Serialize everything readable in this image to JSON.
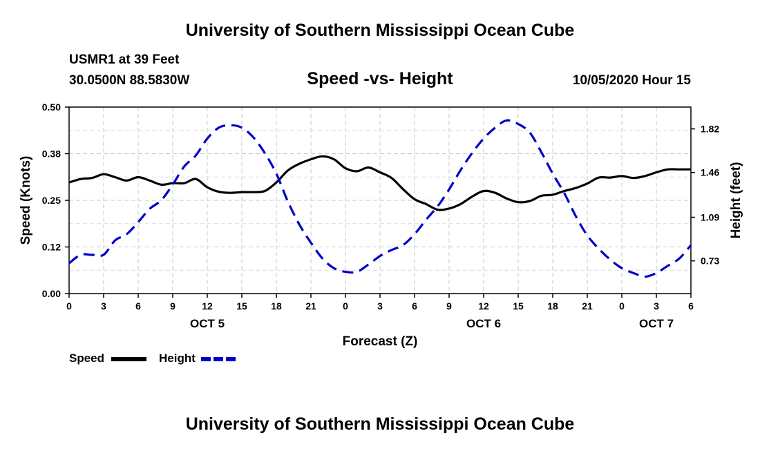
{
  "header": {
    "title": "University of Southern Mississippi Ocean Cube",
    "station": "USMR1 at 39 Feet",
    "coordinates": "30.0500N 88.5830W",
    "datetime": "10/05/2020 Hour 15"
  },
  "footer": {
    "title": "University of Southern Mississippi Ocean Cube"
  },
  "chart_data": {
    "type": "line",
    "title": "Speed -vs- Height",
    "xlabel": "Forecast (Z)",
    "ylabel": "Speed (Knots)",
    "y2label": "Height (feet)",
    "xlim": [
      0,
      54
    ],
    "ylim": [
      0,
      0.5
    ],
    "y2lim": [
      0.46,
      2.0
    ],
    "grid": true,
    "x_ticks": [
      {
        "x": 0,
        "label": "0"
      },
      {
        "x": 3,
        "label": "3"
      },
      {
        "x": 6,
        "label": "6"
      },
      {
        "x": 9,
        "label": "9"
      },
      {
        "x": 12,
        "label": "12"
      },
      {
        "x": 15,
        "label": "15"
      },
      {
        "x": 18,
        "label": "18"
      },
      {
        "x": 21,
        "label": "21"
      },
      {
        "x": 24,
        "label": "0"
      },
      {
        "x": 27,
        "label": "3"
      },
      {
        "x": 30,
        "label": "6"
      },
      {
        "x": 33,
        "label": "9"
      },
      {
        "x": 36,
        "label": "12"
      },
      {
        "x": 39,
        "label": "15"
      },
      {
        "x": 42,
        "label": "18"
      },
      {
        "x": 45,
        "label": "21"
      },
      {
        "x": 48,
        "label": "0"
      },
      {
        "x": 51,
        "label": "3"
      },
      {
        "x": 54,
        "label": "6"
      }
    ],
    "date_labels": [
      {
        "x": 12,
        "label": "OCT 5"
      },
      {
        "x": 36,
        "label": "OCT 6"
      },
      {
        "x": 51,
        "label": "OCT 7"
      }
    ],
    "y_ticks": [
      {
        "y": 0,
        "label": "0.00"
      },
      {
        "y": 0.125,
        "label": "0.12"
      },
      {
        "y": 0.25,
        "label": "0.25"
      },
      {
        "y": 0.375,
        "label": "0.38"
      },
      {
        "y": 0.5,
        "label": "0.50"
      }
    ],
    "y2_ticks": [
      {
        "y": 0.73,
        "label": "0.73"
      },
      {
        "y": 1.09,
        "label": "1.09"
      },
      {
        "y": 1.46,
        "label": "1.46"
      },
      {
        "y": 1.82,
        "label": "1.82"
      }
    ],
    "legend": [
      {
        "name": "Speed",
        "color": "#000000",
        "dash": "solid"
      },
      {
        "name": "Height",
        "color": "#0000cc",
        "dash": "dashed"
      }
    ],
    "series": [
      {
        "name": "Speed",
        "axis": "left",
        "color": "#000000",
        "dash": "solid",
        "x": [
          0,
          1,
          2,
          3,
          4,
          5,
          6,
          7,
          8,
          9,
          10,
          11,
          12,
          13,
          14,
          15,
          16,
          17,
          18,
          19,
          20,
          21,
          22,
          23,
          24,
          25,
          26,
          27,
          28,
          29,
          30,
          31,
          32,
          33,
          34,
          35,
          36,
          37,
          38,
          39,
          40,
          41,
          42,
          43,
          44,
          45,
          46,
          47,
          48,
          49,
          50,
          51,
          52,
          53,
          54
        ],
        "values": [
          0.298,
          0.307,
          0.31,
          0.32,
          0.312,
          0.303,
          0.312,
          0.303,
          0.292,
          0.296,
          0.296,
          0.307,
          0.285,
          0.273,
          0.27,
          0.272,
          0.272,
          0.275,
          0.298,
          0.33,
          0.348,
          0.36,
          0.368,
          0.36,
          0.336,
          0.328,
          0.338,
          0.325,
          0.31,
          0.28,
          0.253,
          0.24,
          0.225,
          0.228,
          0.24,
          0.26,
          0.275,
          0.27,
          0.255,
          0.245,
          0.248,
          0.262,
          0.265,
          0.275,
          0.283,
          0.295,
          0.311,
          0.311,
          0.315,
          0.31,
          0.315,
          0.325,
          0.333,
          0.333,
          0.333
        ]
      },
      {
        "name": "Height",
        "axis": "right",
        "color": "#0000cc",
        "dash": "dashed",
        "x": [
          0,
          1,
          2,
          3,
          4,
          5,
          6,
          7,
          8,
          9,
          10,
          11,
          12,
          13,
          14,
          15,
          16,
          17,
          18,
          19,
          20,
          21,
          22,
          23,
          24,
          25,
          26,
          27,
          28,
          29,
          30,
          31,
          32,
          33,
          34,
          35,
          36,
          37,
          38,
          39,
          40,
          41,
          42,
          43,
          44,
          45,
          46,
          47,
          48,
          49,
          50,
          51,
          52,
          53,
          54
        ],
        "values": [
          0.71,
          0.78,
          0.78,
          0.78,
          0.9,
          0.95,
          1.05,
          1.16,
          1.23,
          1.36,
          1.51,
          1.6,
          1.74,
          1.83,
          1.85,
          1.83,
          1.75,
          1.62,
          1.45,
          1.22,
          1.03,
          0.88,
          0.75,
          0.67,
          0.64,
          0.64,
          0.7,
          0.77,
          0.82,
          0.86,
          0.95,
          1.07,
          1.18,
          1.32,
          1.48,
          1.62,
          1.74,
          1.83,
          1.89,
          1.86,
          1.79,
          1.63,
          1.45,
          1.29,
          1.1,
          0.94,
          0.83,
          0.74,
          0.67,
          0.63,
          0.6,
          0.63,
          0.69,
          0.75,
          0.86
        ]
      }
    ]
  }
}
